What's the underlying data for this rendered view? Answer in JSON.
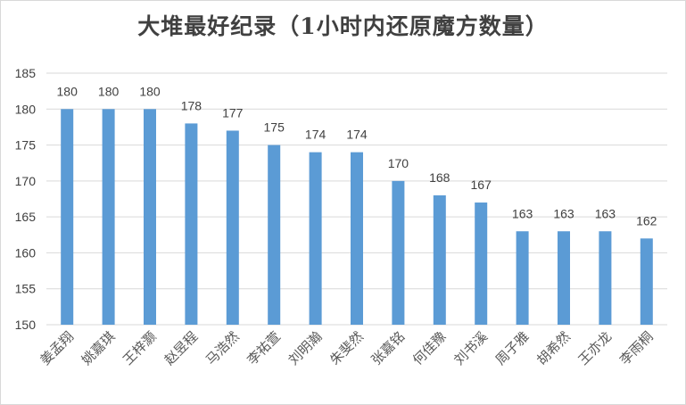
{
  "chart_data": {
    "type": "bar",
    "title": "大堆最好纪录（1小时内还原魔方数量）",
    "xlabel": "",
    "ylabel": "",
    "ylim": [
      150,
      185
    ],
    "yticks": [
      150,
      155,
      160,
      165,
      170,
      175,
      180,
      185
    ],
    "grid": true,
    "legend": "none",
    "bar_color": "#5b9bd5",
    "categories": [
      "姜孟翔",
      "姚嘉琪",
      "王梓灏",
      "赵昱程",
      "马浩然",
      "李祐萱",
      "刘明瀚",
      "朱斐然",
      "张嘉铭",
      "何佳豫",
      "刘书溪",
      "周子雅",
      "胡希然",
      "王亦龙",
      "李雨桐"
    ],
    "values": [
      180,
      180,
      180,
      178,
      177,
      175,
      174,
      174,
      170,
      168,
      167,
      163,
      163,
      163,
      162
    ]
  }
}
